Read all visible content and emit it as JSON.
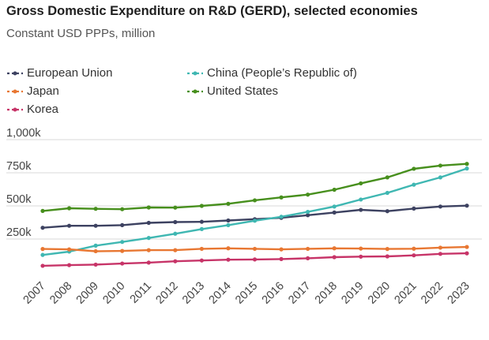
{
  "title": "Gross Domestic Expenditure on R&D (GERD), selected economies",
  "subtitle": "Constant USD PPPs, million",
  "chart_data": {
    "type": "line",
    "x": [
      "2007",
      "2008",
      "2009",
      "2010",
      "2011",
      "2012",
      "2013",
      "2014",
      "2015",
      "2016",
      "2017",
      "2018",
      "2019",
      "2020",
      "2021",
      "2022",
      "2023"
    ],
    "ylim": [
      0,
      1000000
    ],
    "yticks": [
      250000,
      500000,
      750000,
      1000000
    ],
    "ytick_labels": [
      "250k",
      "500k",
      "750k",
      "1,000k"
    ],
    "grid": "horizontal",
    "legend_position": "top",
    "series": [
      {
        "name": "European Union",
        "color": "#3d4261",
        "values": [
          335000,
          350000,
          350000,
          355000,
          372000,
          378000,
          380000,
          390000,
          400000,
          410000,
          430000,
          450000,
          470000,
          460000,
          480000,
          495000,
          502000
        ]
      },
      {
        "name": "China (People’s Republic of)",
        "color": "#3fb7b2",
        "values": [
          130000,
          155000,
          200000,
          228000,
          258000,
          290000,
          325000,
          355000,
          388000,
          418000,
          455000,
          495000,
          548000,
          598000,
          660000,
          715000,
          782000
        ]
      },
      {
        "name": "Japan",
        "color": "#e87732",
        "values": [
          175000,
          172000,
          158000,
          160000,
          166000,
          166000,
          176000,
          180000,
          176000,
          172000,
          176000,
          180000,
          178000,
          175000,
          177000,
          185000,
          190000
        ]
      },
      {
        "name": "United States",
        "color": "#478f1d",
        "values": [
          462000,
          482000,
          478000,
          475000,
          488000,
          487000,
          500000,
          516000,
          542000,
          564000,
          585000,
          622000,
          670000,
          715000,
          780000,
          804000,
          817000
        ]
      },
      {
        "name": "Korea",
        "color": "#c73468",
        "values": [
          48000,
          53000,
          57000,
          65000,
          72000,
          82000,
          88000,
          94000,
          96000,
          99000,
          105000,
          113000,
          117000,
          119000,
          127000,
          138000,
          142000
        ]
      }
    ]
  }
}
